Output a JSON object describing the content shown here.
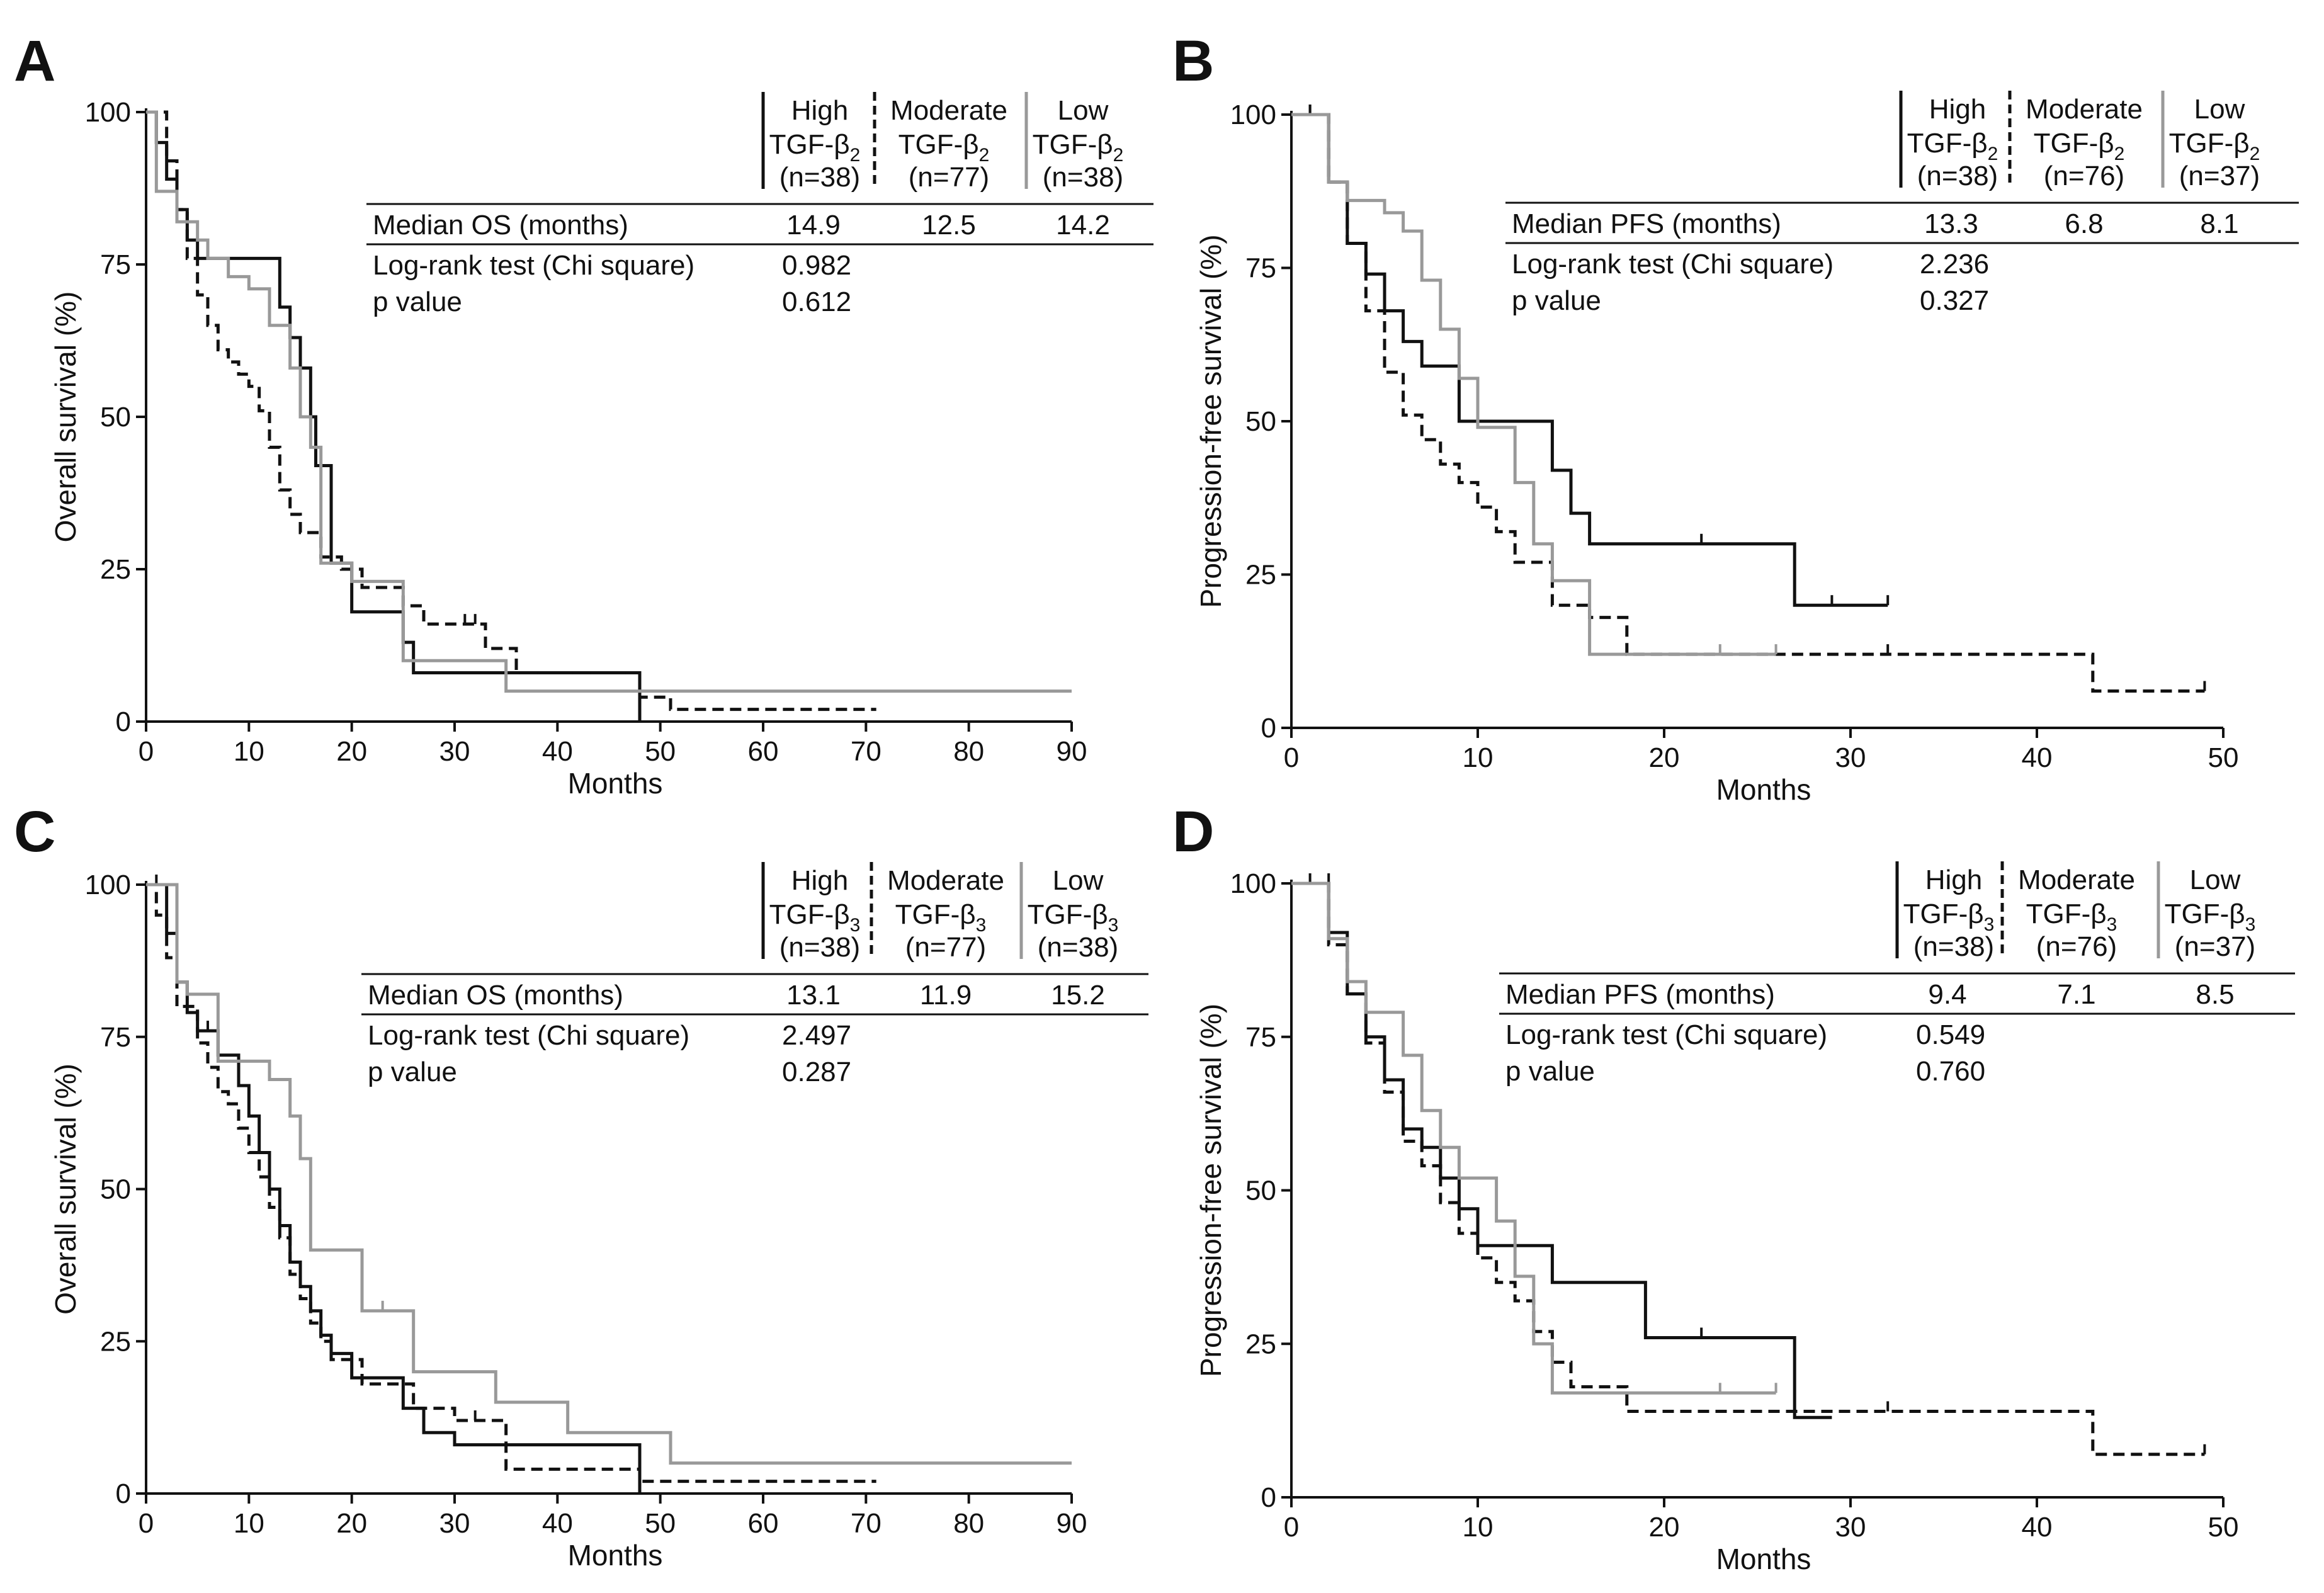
{
  "chart_data": [
    {
      "panel": "A",
      "type": "line",
      "xlabel": "Months",
      "ylabel": "Overall survival (%)",
      "xlim": [
        0,
        90
      ],
      "ylim": [
        0,
        100
      ],
      "xticks": [
        0,
        10,
        20,
        30,
        40,
        50,
        60,
        70,
        80,
        90
      ],
      "yticks": [
        0,
        25,
        50,
        75,
        100
      ],
      "legend_groups": [
        {
          "l1": "High",
          "l2": "TGF-β",
          "sub": "2",
          "n": "(n=38)",
          "style": "solid",
          "color": "#111111"
        },
        {
          "l1": "Moderate",
          "l2": "TGF-β",
          "sub": "2",
          "n": "(n=77)",
          "style": "dashed",
          "color": "#111111"
        },
        {
          "l1": "Low",
          "l2": "TGF-β",
          "sub": "2",
          "n": "(n=38)",
          "style": "solid",
          "color": "#999999"
        }
      ],
      "stats": {
        "median_label": "Median OS (months)",
        "medians": [
          "14.9",
          "12.5",
          "14.2"
        ],
        "test_label": "Log-rank test (Chi square)",
        "test_value": "0.982",
        "p_label": "p value",
        "p_value": "0.612"
      },
      "series": [
        {
          "name": "High TGF-β2 (n=38)",
          "style": "solid",
          "color": "#111111",
          "x": [
            0,
            1,
            2,
            3,
            4,
            5,
            11,
            13,
            14,
            15,
            16,
            16.5,
            18,
            20,
            25,
            26,
            27,
            48
          ],
          "y": [
            100,
            95,
            89,
            84,
            79,
            76,
            76,
            68,
            63,
            58,
            50,
            42,
            26,
            18,
            13,
            8,
            8,
            0
          ],
          "censor_x": [],
          "censor_y": []
        },
        {
          "name": "Moderate TGF-β2 (n=77)",
          "style": "dashed",
          "color": "#111111",
          "x": [
            0,
            2,
            3,
            4,
            5,
            6,
            7,
            8,
            9,
            10,
            11,
            12,
            13,
            14,
            15,
            17,
            19,
            21,
            25,
            27,
            31,
            33,
            36,
            48,
            51,
            71
          ],
          "y": [
            100,
            92,
            84,
            76,
            70,
            65,
            61,
            59,
            57,
            55,
            51,
            45,
            38,
            34,
            31,
            27,
            25,
            22,
            19,
            16,
            16,
            12,
            8,
            4,
            2,
            2
          ],
          "censor_x": [
            7,
            31,
            32
          ],
          "censor_y": [
            61,
            16,
            16
          ]
        },
        {
          "name": "Low TGF-β2 (n=38)",
          "style": "solid",
          "color": "#999999",
          "x": [
            0,
            1,
            3,
            5,
            6,
            8,
            10,
            12,
            14,
            15,
            16,
            17,
            20,
            25,
            28,
            35,
            90
          ],
          "y": [
            100,
            87,
            82,
            79,
            76,
            73,
            71,
            65,
            58,
            50,
            45,
            26,
            23,
            10,
            10,
            5,
            5
          ],
          "censor_x": [],
          "censor_y": []
        }
      ]
    },
    {
      "panel": "B",
      "type": "line",
      "xlabel": "Months",
      "ylabel": "Progression-free survival (%)",
      "xlim": [
        0,
        50
      ],
      "ylim": [
        0,
        100
      ],
      "xticks": [
        0,
        10,
        20,
        30,
        40,
        50
      ],
      "yticks": [
        0,
        25,
        50,
        75,
        100
      ],
      "legend_groups": [
        {
          "l1": "High",
          "l2": "TGF-β",
          "sub": "2",
          "n": "(n=38)",
          "style": "solid",
          "color": "#111111"
        },
        {
          "l1": "Moderate",
          "l2": "TGF-β",
          "sub": "2",
          "n": "(n=76)",
          "style": "dashed",
          "color": "#111111"
        },
        {
          "l1": "Low",
          "l2": "TGF-β",
          "sub": "2",
          "n": "(n=37)",
          "style": "solid",
          "color": "#999999"
        }
      ],
      "stats": {
        "median_label": "Median PFS (months)",
        "medians": [
          "13.3",
          "6.8",
          "8.1"
        ],
        "test_label": "Log-rank test (Chi square)",
        "test_value": "2.236",
        "p_label": "p value",
        "p_value": "0.327"
      },
      "series": [
        {
          "name": "High TGF-β2 (n=38)",
          "style": "solid",
          "color": "#111111",
          "x": [
            0,
            2,
            3,
            4,
            5,
            6,
            7,
            9,
            14,
            15,
            16,
            27,
            32
          ],
          "y": [
            100,
            89,
            79,
            74,
            68,
            63,
            59,
            50,
            42,
            35,
            30,
            20,
            20
          ],
          "censor_x": [
            1,
            14,
            22,
            29,
            32
          ],
          "censor_y": [
            100,
            42,
            30,
            20,
            20
          ]
        },
        {
          "name": "Moderate TGF-β2 (n=76)",
          "style": "dashed",
          "color": "#111111",
          "x": [
            0,
            2,
            3,
            4,
            5,
            6,
            7,
            8,
            9,
            10,
            11,
            12,
            14,
            16,
            18,
            43,
            49
          ],
          "y": [
            100,
            89,
            79,
            68,
            58,
            51,
            47,
            43,
            40,
            36,
            32,
            27,
            20,
            18,
            12,
            6,
            6
          ],
          "censor_x": [
            1,
            2,
            16,
            32,
            49
          ],
          "censor_y": [
            100,
            95,
            18,
            12,
            6
          ]
        },
        {
          "name": "Low TGF-β2 (n=37)",
          "style": "solid",
          "color": "#999999",
          "x": [
            0,
            2,
            3,
            5,
            6,
            7,
            8,
            9,
            10,
            12,
            13,
            14,
            16,
            26
          ],
          "y": [
            100,
            89,
            86,
            84,
            81,
            73,
            65,
            57,
            49,
            40,
            30,
            24,
            12,
            12
          ],
          "censor_x": [
            5,
            6,
            23,
            26
          ],
          "censor_y": [
            84,
            81,
            12,
            12
          ]
        }
      ]
    },
    {
      "panel": "C",
      "type": "line",
      "xlabel": "Months",
      "ylabel": "Overall survival (%)",
      "xlim": [
        0,
        90
      ],
      "ylim": [
        0,
        100
      ],
      "xticks": [
        0,
        10,
        20,
        30,
        40,
        50,
        60,
        70,
        80,
        90
      ],
      "yticks": [
        0,
        25,
        50,
        75,
        100
      ],
      "legend_groups": [
        {
          "l1": "High",
          "l2": "TGF-β",
          "sub": "3",
          "n": "(n=38)",
          "style": "solid",
          "color": "#111111"
        },
        {
          "l1": "Moderate",
          "l2": "TGF-β",
          "sub": "3",
          "n": "(n=77)",
          "style": "dashed",
          "color": "#111111"
        },
        {
          "l1": "Low",
          "l2": "TGF-β",
          "sub": "3",
          "n": "(n=38)",
          "style": "solid",
          "color": "#999999"
        }
      ],
      "stats": {
        "median_label": "Median OS (months)",
        "medians": [
          "13.1",
          "11.9",
          "15.2"
        ],
        "test_label": "Log-rank test (Chi square)",
        "test_value": "2.497",
        "p_label": "p value",
        "p_value": "0.287"
      },
      "series": [
        {
          "name": "High TGF-β3 (n=38)",
          "style": "solid",
          "color": "#111111",
          "x": [
            0,
            2,
            3,
            4,
            5,
            7,
            9,
            10,
            11,
            12,
            13,
            14,
            15,
            16,
            17,
            18,
            20,
            25,
            27,
            30,
            48
          ],
          "y": [
            100,
            92,
            84,
            79,
            76,
            72,
            67,
            62,
            56,
            50,
            44,
            38,
            34,
            30,
            26,
            23,
            19,
            14,
            10,
            8,
            0
          ],
          "censor_x": [
            1,
            5,
            6
          ],
          "censor_y": [
            100,
            76,
            76
          ]
        },
        {
          "name": "Moderate TGF-β3 (n=77)",
          "style": "dashed",
          "color": "#111111",
          "x": [
            0,
            1,
            2,
            3,
            5,
            6,
            7,
            8,
            9,
            10,
            11,
            12,
            13,
            14,
            15,
            16,
            17,
            18,
            21,
            26,
            30,
            35,
            48,
            71
          ],
          "y": [
            100,
            95,
            88,
            80,
            74,
            70,
            66,
            64,
            60,
            56,
            52,
            47,
            42,
            36,
            32,
            28,
            25,
            22,
            18,
            14,
            12,
            4,
            2,
            2
          ],
          "censor_x": [
            32
          ],
          "censor_y": [
            12
          ]
        },
        {
          "name": "Low TGF-β3 (n=38)",
          "style": "solid",
          "color": "#999999",
          "x": [
            0,
            3,
            4,
            7,
            12,
            14,
            15,
            16,
            21,
            26,
            34,
            41,
            51,
            90
          ],
          "y": [
            100,
            84,
            82,
            71,
            68,
            62,
            55,
            40,
            30,
            20,
            15,
            10,
            5,
            5
          ],
          "censor_x": [
            4,
            23
          ],
          "censor_y": [
            82,
            30
          ]
        }
      ]
    },
    {
      "panel": "D",
      "type": "line",
      "xlabel": "Months",
      "ylabel": "Progression-free survival (%)",
      "xlim": [
        0,
        50
      ],
      "ylim": [
        0,
        100
      ],
      "xticks": [
        0,
        10,
        20,
        30,
        40,
        50
      ],
      "yticks": [
        0,
        25,
        50,
        75,
        100
      ],
      "legend_groups": [
        {
          "l1": "High",
          "l2": "TGF-β",
          "sub": "3",
          "n": "(n=38)",
          "style": "solid",
          "color": "#111111"
        },
        {
          "l1": "Moderate",
          "l2": "TGF-β",
          "sub": "3",
          "n": "(n=76)",
          "style": "dashed",
          "color": "#111111"
        },
        {
          "l1": "Low",
          "l2": "TGF-β",
          "sub": "3",
          "n": "(n=37)",
          "style": "solid",
          "color": "#999999"
        }
      ],
      "stats": {
        "median_label": "Median PFS (months)",
        "medians": [
          "9.4",
          "7.1",
          "8.5"
        ],
        "test_label": "Log-rank test (Chi square)",
        "test_value": "0.549",
        "p_label": "p value",
        "p_value": "0.760"
      },
      "series": [
        {
          "name": "High TGF-β3 (n=38)",
          "style": "solid",
          "color": "#111111",
          "x": [
            0,
            2,
            3,
            4,
            5,
            6,
            7,
            8,
            9,
            10,
            14,
            19,
            27,
            29
          ],
          "y": [
            100,
            92,
            82,
            75,
            68,
            60,
            57,
            52,
            47,
            41,
            35,
            26,
            13,
            13
          ],
          "censor_x": [
            1,
            2,
            14,
            22
          ],
          "censor_y": [
            100,
            100,
            35,
            26
          ]
        },
        {
          "name": "Moderate TGF-β3 (n=76)",
          "style": "dashed",
          "color": "#111111",
          "x": [
            0,
            2,
            3,
            4,
            5,
            6,
            7,
            8,
            9,
            10,
            11,
            12,
            13,
            14,
            15,
            18,
            43,
            49
          ],
          "y": [
            100,
            90,
            82,
            74,
            66,
            58,
            54,
            48,
            43,
            39,
            35,
            32,
            27,
            22,
            18,
            14,
            7,
            7
          ],
          "censor_x": [
            32,
            49
          ],
          "censor_y": [
            14,
            7
          ]
        },
        {
          "name": "Low TGF-β3 (n=37)",
          "style": "solid",
          "color": "#999999",
          "x": [
            0,
            2,
            3,
            4,
            6,
            7,
            8,
            9,
            11,
            12,
            13,
            14,
            26
          ],
          "y": [
            100,
            91,
            84,
            79,
            72,
            63,
            57,
            52,
            45,
            36,
            25,
            17,
            17
          ],
          "censor_x": [
            6,
            23,
            26
          ],
          "censor_y": [
            72,
            17,
            17
          ]
        }
      ]
    }
  ]
}
